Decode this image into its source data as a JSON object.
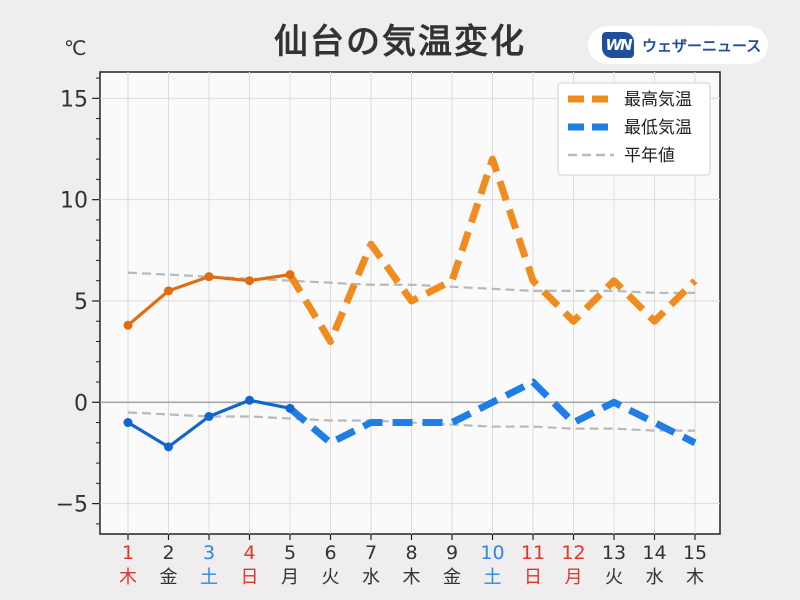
{
  "title": "仙台の気温変化",
  "unit": "℃",
  "logo": {
    "mark": "WN",
    "text": "ウェザーニュース"
  },
  "colors": {
    "high": "#f08c1e",
    "high_solid": "#e26d10",
    "low": "#1e7ee6",
    "low_solid": "#1265cc",
    "normal": "#b9b9b9",
    "red": "#e0352b",
    "blue": "#2b87e6",
    "black": "#333333"
  },
  "chart_data": {
    "type": "line",
    "title": "仙台の気温変化",
    "ylabel": "℃",
    "ylim": [
      -6.5,
      16.3
    ],
    "yticks": [
      -5,
      0,
      5,
      10,
      15
    ],
    "ytick_labels": [
      "−5",
      "0",
      "5",
      "10",
      "15"
    ],
    "grid": true,
    "legend_position": "top-right",
    "categories": [
      "1",
      "2",
      "3",
      "4",
      "5",
      "6",
      "7",
      "8",
      "9",
      "10",
      "11",
      "12",
      "13",
      "14",
      "15"
    ],
    "weekdays": [
      "木",
      "金",
      "土",
      "日",
      "月",
      "火",
      "水",
      "木",
      "金",
      "土",
      "日",
      "月",
      "火",
      "水",
      "木"
    ],
    "label_colors": [
      "red",
      "black",
      "blue",
      "red",
      "black",
      "black",
      "black",
      "black",
      "black",
      "blue",
      "red",
      "red",
      "black",
      "black",
      "black"
    ],
    "observed_days": 5,
    "series": [
      {
        "name": "最高気温",
        "values": [
          3.8,
          5.5,
          6.2,
          6.0,
          6.3,
          3.0,
          7.8,
          5.0,
          6.0,
          12.0,
          6.0,
          4.0,
          6.0,
          4.0,
          6.0
        ]
      },
      {
        "name": "最低気温",
        "values": [
          -1.0,
          -2.2,
          -0.7,
          0.1,
          -0.3,
          -2.0,
          -1.0,
          -1.0,
          -1.0,
          0.0,
          1.0,
          -1.0,
          0.0,
          -1.0,
          -2.0
        ]
      },
      {
        "name": "平年値",
        "values": [
          6.4,
          6.3,
          6.2,
          6.1,
          6.0,
          5.9,
          5.8,
          5.8,
          5.7,
          5.6,
          5.5,
          5.5,
          5.5,
          5.4,
          5.4
        ]
      },
      {
        "name": "平年値",
        "values": [
          -0.5,
          -0.6,
          -0.7,
          -0.7,
          -0.8,
          -0.9,
          -0.9,
          -1.0,
          -1.1,
          -1.2,
          -1.2,
          -1.3,
          -1.3,
          -1.4,
          -1.4
        ]
      }
    ]
  }
}
